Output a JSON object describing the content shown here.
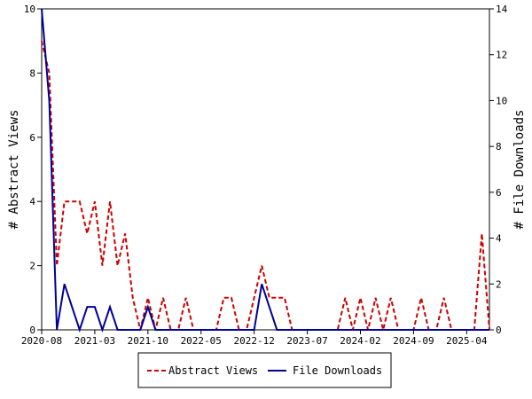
{
  "chart_data": {
    "type": "line",
    "x_tick_labels": [
      "2020-08",
      "2021-03",
      "2021-10",
      "2022-05",
      "2022-12",
      "2023-07",
      "2024-02",
      "2024-09",
      "2025-04"
    ],
    "y_left_label": "# Abstract Views",
    "y_right_label": "# File Downloads",
    "y_left_ticks": [
      "0",
      "2",
      "4",
      "6",
      "8",
      "10"
    ],
    "y_right_ticks": [
      "0",
      "2",
      "4",
      "6",
      "8",
      "10",
      "12",
      "14"
    ],
    "ylim_left": [
      0,
      10
    ],
    "ylim_right": [
      0,
      14
    ],
    "grid": false,
    "legend_position": "bottom-center",
    "series": [
      {
        "name": "Abstract Views",
        "axis": "left",
        "color": "#cc0000",
        "style": "dashed",
        "values": [
          9,
          8,
          2,
          4,
          4,
          4,
          3,
          4,
          2,
          4,
          2,
          3,
          1,
          0,
          1,
          0,
          1,
          0,
          0,
          1,
          0,
          0,
          0,
          0,
          1,
          1,
          0,
          0,
          1,
          2,
          1,
          1,
          1,
          0,
          0,
          0,
          0,
          0,
          0,
          0,
          1,
          0,
          1,
          0,
          1,
          0,
          1,
          0,
          0,
          0,
          1,
          0,
          0,
          1,
          0,
          0,
          0,
          0,
          3,
          0
        ]
      },
      {
        "name": "File Downloads",
        "axis": "right",
        "color": "#000099",
        "style": "solid",
        "values": [
          14,
          10,
          0,
          2,
          1,
          0,
          1,
          1,
          0,
          1,
          0,
          0,
          0,
          0,
          1,
          0,
          0,
          0,
          0,
          0,
          0,
          0,
          0,
          0,
          0,
          0,
          0,
          0,
          0,
          2,
          1,
          0,
          0,
          0,
          0,
          0,
          0,
          0,
          0,
          0,
          0,
          0,
          0,
          0,
          0,
          0,
          0,
          0,
          0,
          0,
          0,
          0,
          0,
          0,
          0,
          0,
          0,
          0,
          0,
          0
        ]
      }
    ]
  }
}
